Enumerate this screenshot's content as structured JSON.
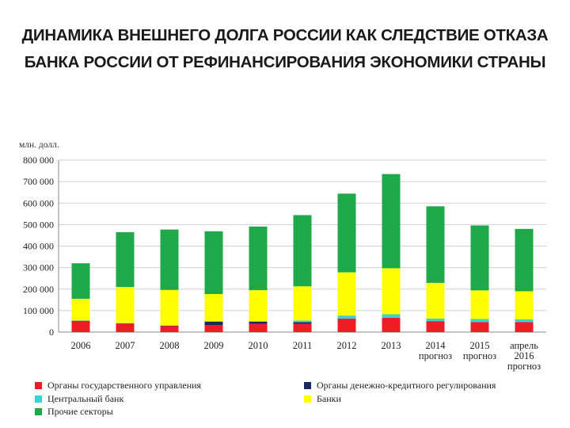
{
  "slide": {
    "title_line1": "ДИНАМИКА ВНЕШНЕГО ДОЛГА РОССИИ КАК СЛЕДСТВИЕ ОТКАЗА",
    "title_line2": "БАНКА РОССИИ ОТ РЕФИНАНСИРОВАНИЯ ЭКОНОМИКИ СТРАНЫ"
  },
  "chart_data": {
    "type": "bar",
    "stacked": true,
    "unit_label": "млн. долл.",
    "categories": [
      [
        "2006"
      ],
      [
        "2007"
      ],
      [
        "2008"
      ],
      [
        "2009"
      ],
      [
        "2010"
      ],
      [
        "2011"
      ],
      [
        "2012"
      ],
      [
        "2013"
      ],
      [
        "2014",
        "прогноз"
      ],
      [
        "2015",
        "прогноз"
      ],
      [
        "апрель",
        "2016",
        "прогноз"
      ]
    ],
    "ylim": [
      0,
      800000
    ],
    "yticks": [
      0,
      100000,
      200000,
      300000,
      400000,
      500000,
      600000,
      700000,
      800000
    ],
    "ytick_labels": [
      "0",
      "100 000",
      "200 000",
      "300 000",
      "400 000",
      "500 000",
      "600 000",
      "700 000",
      "800 000"
    ],
    "series": [
      {
        "name": "Органы государственного управления",
        "color": "#ee1c25",
        "values": [
          52000,
          40000,
          28000,
          32000,
          38000,
          38000,
          62000,
          66000,
          50000,
          46000,
          46000
        ]
      },
      {
        "name": "Органы денежно-кредитного регулирования",
        "color": "#1a2a5e",
        "values": [
          1000,
          1000,
          2000,
          17000,
          11000,
          8000,
          1000,
          1000,
          1000,
          1000,
          1000
        ]
      },
      {
        "name": "Центральный банк",
        "color": "#3fd0d4",
        "values": [
          1000,
          1000,
          1000,
          1000,
          1000,
          8000,
          14000,
          16000,
          12000,
          14000,
          13000
        ]
      },
      {
        "name": "Банки",
        "color": "#ffff00",
        "values": [
          101000,
          168000,
          165000,
          127000,
          145000,
          159000,
          201000,
          214000,
          166000,
          133000,
          130000
        ]
      },
      {
        "name": "Прочие секторы",
        "color": "#1ea84a",
        "values": [
          165000,
          255000,
          281000,
          292000,
          296000,
          331000,
          366000,
          438000,
          356000,
          302000,
          290000
        ]
      }
    ],
    "legend_position": "bottom"
  }
}
